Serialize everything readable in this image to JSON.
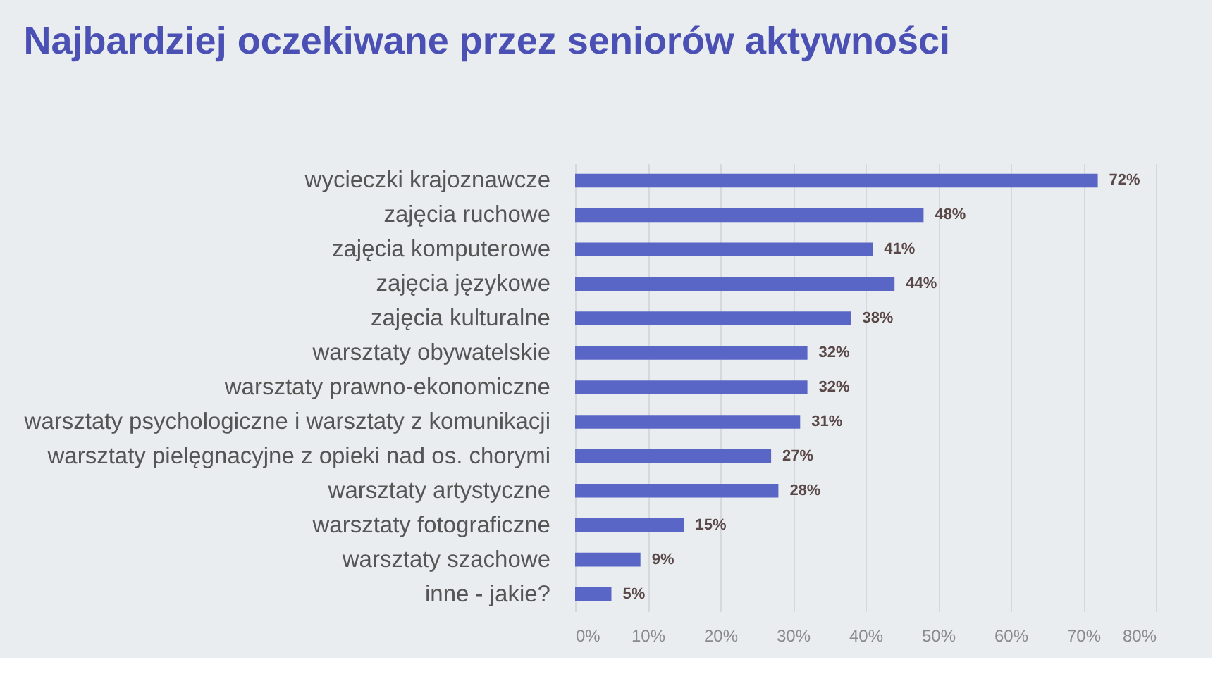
{
  "chart_data": {
    "type": "bar",
    "orientation": "horizontal",
    "title": "Najbardziej oczekiwane przez seniorów aktywności",
    "categories": [
      "wycieczki krajoznawcze",
      "zajęcia ruchowe",
      "zajęcia komputerowe",
      "zajęcia językowe",
      "zajęcia kulturalne",
      "warsztaty obywatelskie",
      "warsztaty prawno-ekonomiczne",
      "warsztaty psychologiczne i warsztaty z komunikacji",
      "warsztaty pielęgnacyjne z opieki nad os. chorymi",
      "warsztaty artystyczne",
      "warsztaty fotograficzne",
      "warsztaty szachowe",
      "inne - jakie?"
    ],
    "values": [
      72,
      48,
      41,
      44,
      38,
      32,
      32,
      31,
      27,
      28,
      15,
      9,
      5
    ],
    "value_labels": [
      "72%",
      "48%",
      "41%",
      "44%",
      "38%",
      "32%",
      "32%",
      "31%",
      "27%",
      "28%",
      "15%",
      "9%",
      "5%"
    ],
    "color": "#5a66c6",
    "xlim": [
      0,
      80
    ],
    "xticks": [
      {
        "value": 0,
        "label": "0%"
      },
      {
        "value": 10,
        "label": "10%"
      },
      {
        "value": 20,
        "label": "20%"
      },
      {
        "value": 30,
        "label": "30%"
      },
      {
        "value": 40,
        "label": "40%"
      },
      {
        "value": 50,
        "label": "50%"
      },
      {
        "value": 60,
        "label": "60%"
      },
      {
        "value": 70,
        "label": "70%"
      },
      {
        "value": 80,
        "label": "80%"
      }
    ],
    "grid": "x"
  }
}
